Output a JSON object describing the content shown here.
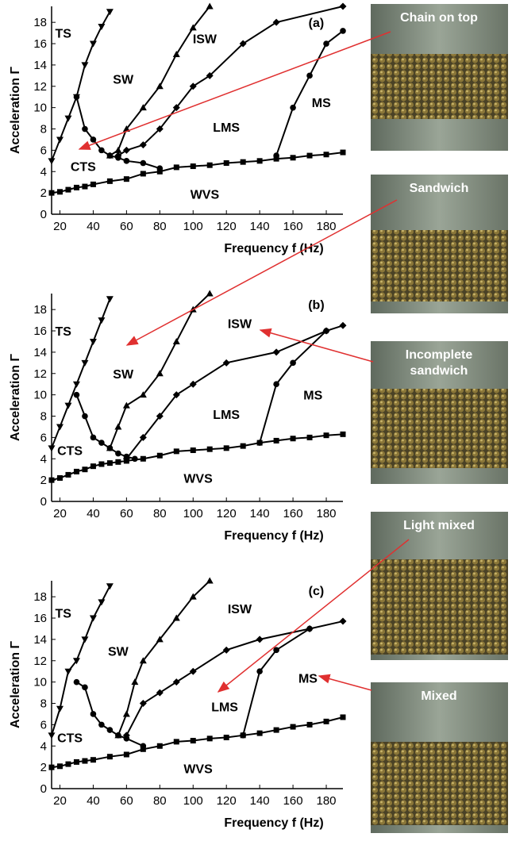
{
  "chart_data": [
    {
      "type": "line",
      "xlabel": "Frequency f (Hz)",
      "ylabel": "Acceleration Γ",
      "xlim": [
        15,
        190
      ],
      "ylim": [
        0,
        19.5
      ],
      "xticks": [
        20,
        40,
        60,
        80,
        100,
        120,
        140,
        160,
        180
      ],
      "yticks": [
        0,
        2,
        4,
        6,
        8,
        10,
        12,
        14,
        16,
        18
      ],
      "annotations": [
        "TS",
        "SW",
        "ISW",
        "LMS",
        "MS",
        "CTS",
        "WVS",
        "(a)"
      ],
      "series": [
        {
          "marker": "triangle-down",
          "color": "#000000",
          "x": [
            15,
            20,
            25,
            30,
            35,
            40,
            45,
            50
          ],
          "values": [
            5,
            7,
            9,
            11,
            14,
            16,
            17.6,
            19
          ]
        },
        {
          "marker": "circle",
          "color": "#000000",
          "x": [
            30,
            35,
            40,
            45,
            50,
            55,
            60,
            70,
            80
          ],
          "values": [
            11,
            8,
            7,
            6,
            5.5,
            5.3,
            5,
            4.8,
            4.3
          ]
        },
        {
          "marker": "triangle-up",
          "color": "#000000",
          "x": [
            50,
            55,
            60,
            70,
            80,
            90,
            100,
            110
          ],
          "values": [
            5.5,
            6,
            8,
            10,
            12,
            15,
            17.5,
            19.5
          ]
        },
        {
          "marker": "diamond",
          "color": "#000000",
          "x": [
            55,
            60,
            70,
            80,
            90,
            100,
            110,
            130,
            150,
            190
          ],
          "values": [
            5.5,
            6,
            6.5,
            8,
            10,
            12,
            13,
            16,
            18,
            19.5
          ]
        },
        {
          "marker": "circle",
          "color": "#000000",
          "x": [
            150,
            160,
            170,
            180,
            190
          ],
          "values": [
            5.5,
            10,
            13,
            16,
            17.2
          ]
        },
        {
          "marker": "square",
          "color": "#000000",
          "x": [
            15,
            20,
            25,
            30,
            35,
            40,
            50,
            60,
            70,
            80,
            90,
            100,
            110,
            120,
            130,
            140,
            150,
            160,
            170,
            180,
            190
          ],
          "values": [
            2,
            2.1,
            2.3,
            2.5,
            2.6,
            2.8,
            3.1,
            3.3,
            3.8,
            4,
            4.4,
            4.5,
            4.6,
            4.8,
            4.9,
            5,
            5.2,
            5.3,
            5.5,
            5.6,
            5.8
          ]
        }
      ]
    },
    {
      "type": "line",
      "xlabel": "Frequency f (Hz)",
      "ylabel": "Acceleration Γ",
      "xlim": [
        15,
        190
      ],
      "ylim": [
        0,
        19.5
      ],
      "xticks": [
        20,
        40,
        60,
        80,
        100,
        120,
        140,
        160,
        180
      ],
      "yticks": [
        0,
        2,
        4,
        6,
        8,
        10,
        12,
        14,
        16,
        18
      ],
      "annotations": [
        "TS",
        "SW",
        "ISW",
        "LMS",
        "MS",
        "CTS",
        "WVS",
        "(b)"
      ],
      "series": [
        {
          "marker": "triangle-down",
          "color": "#000000",
          "x": [
            15,
            20,
            25,
            30,
            35,
            40,
            45,
            50
          ],
          "values": [
            5,
            7,
            9,
            11,
            13,
            15,
            17,
            19
          ]
        },
        {
          "marker": "circle",
          "color": "#000000",
          "x": [
            30,
            35,
            40,
            45,
            50,
            55,
            60,
            65
          ],
          "values": [
            10,
            8,
            6,
            5.5,
            5,
            4.5,
            4.2,
            4
          ]
        },
        {
          "marker": "triangle-up",
          "color": "#000000",
          "x": [
            50,
            55,
            60,
            70,
            80,
            90,
            100,
            110
          ],
          "values": [
            5,
            7,
            9,
            10,
            12,
            15,
            18,
            19.5
          ]
        },
        {
          "marker": "diamond",
          "color": "#000000",
          "x": [
            60,
            70,
            80,
            90,
            100,
            120,
            150,
            180,
            190
          ],
          "values": [
            4,
            6,
            8,
            10,
            11,
            13,
            14,
            16,
            16.5
          ]
        },
        {
          "marker": "circle",
          "color": "#000000",
          "x": [
            140,
            150,
            160,
            180
          ],
          "values": [
            5.5,
            11,
            13,
            16
          ]
        },
        {
          "marker": "square",
          "color": "#000000",
          "x": [
            15,
            20,
            25,
            30,
            35,
            40,
            45,
            50,
            55,
            60,
            70,
            80,
            90,
            100,
            110,
            120,
            130,
            140,
            150,
            160,
            170,
            180,
            190
          ],
          "values": [
            2,
            2.2,
            2.5,
            2.8,
            3,
            3.3,
            3.5,
            3.6,
            3.7,
            3.8,
            4,
            4.3,
            4.7,
            4.8,
            4.9,
            5,
            5.2,
            5.5,
            5.7,
            5.9,
            6,
            6.2,
            6.3
          ]
        }
      ]
    },
    {
      "type": "line",
      "xlabel": "Frequency f (Hz)",
      "ylabel": "Acceleration Γ",
      "xlim": [
        15,
        190
      ],
      "ylim": [
        0,
        19.5
      ],
      "xticks": [
        20,
        40,
        60,
        80,
        100,
        120,
        140,
        160,
        180
      ],
      "yticks": [
        0,
        2,
        4,
        6,
        8,
        10,
        12,
        14,
        16,
        18
      ],
      "annotations": [
        "TS",
        "SW",
        "ISW",
        "LMS",
        "MS",
        "CTS",
        "WVS",
        "(c)"
      ],
      "series": [
        {
          "marker": "triangle-down",
          "color": "#000000",
          "x": [
            15,
            20,
            25,
            30,
            35,
            40,
            45,
            50
          ],
          "values": [
            5,
            7.5,
            11,
            12,
            14,
            16,
            17.5,
            19
          ]
        },
        {
          "marker": "circle",
          "color": "#000000",
          "x": [
            30,
            35,
            40,
            45,
            50,
            55,
            60,
            70
          ],
          "values": [
            10,
            9.5,
            7,
            6,
            5.5,
            5,
            4.7,
            4
          ]
        },
        {
          "marker": "triangle-up",
          "color": "#000000",
          "x": [
            55,
            60,
            65,
            70,
            80,
            90,
            100,
            110
          ],
          "values": [
            5,
            7,
            10,
            12,
            14,
            16,
            18,
            19.5
          ]
        },
        {
          "marker": "diamond",
          "color": "#000000",
          "x": [
            60,
            70,
            80,
            90,
            100,
            120,
            140,
            170,
            190
          ],
          "values": [
            5,
            8,
            9,
            10,
            11,
            13,
            14,
            15,
            15.7
          ]
        },
        {
          "marker": "circle",
          "color": "#000000",
          "x": [
            130,
            140,
            150,
            170
          ],
          "values": [
            5,
            11,
            13,
            15
          ]
        },
        {
          "marker": "square",
          "color": "#000000",
          "x": [
            15,
            20,
            25,
            30,
            35,
            40,
            50,
            60,
            70,
            80,
            90,
            100,
            110,
            120,
            130,
            140,
            150,
            160,
            170,
            180,
            190
          ],
          "values": [
            2,
            2.1,
            2.3,
            2.5,
            2.6,
            2.7,
            3,
            3.2,
            3.7,
            4,
            4.4,
            4.5,
            4.7,
            4.8,
            5,
            5.2,
            5.5,
            5.8,
            6,
            6.3,
            6.7
          ]
        }
      ]
    }
  ],
  "photos": [
    {
      "caption": [
        "Chain on top"
      ]
    },
    {
      "caption": [
        "Sandwich"
      ]
    },
    {
      "caption": [
        "Incomplete",
        "sandwich"
      ]
    },
    {
      "caption": [
        "Light mixed"
      ]
    },
    {
      "caption": [
        "Mixed"
      ]
    }
  ]
}
